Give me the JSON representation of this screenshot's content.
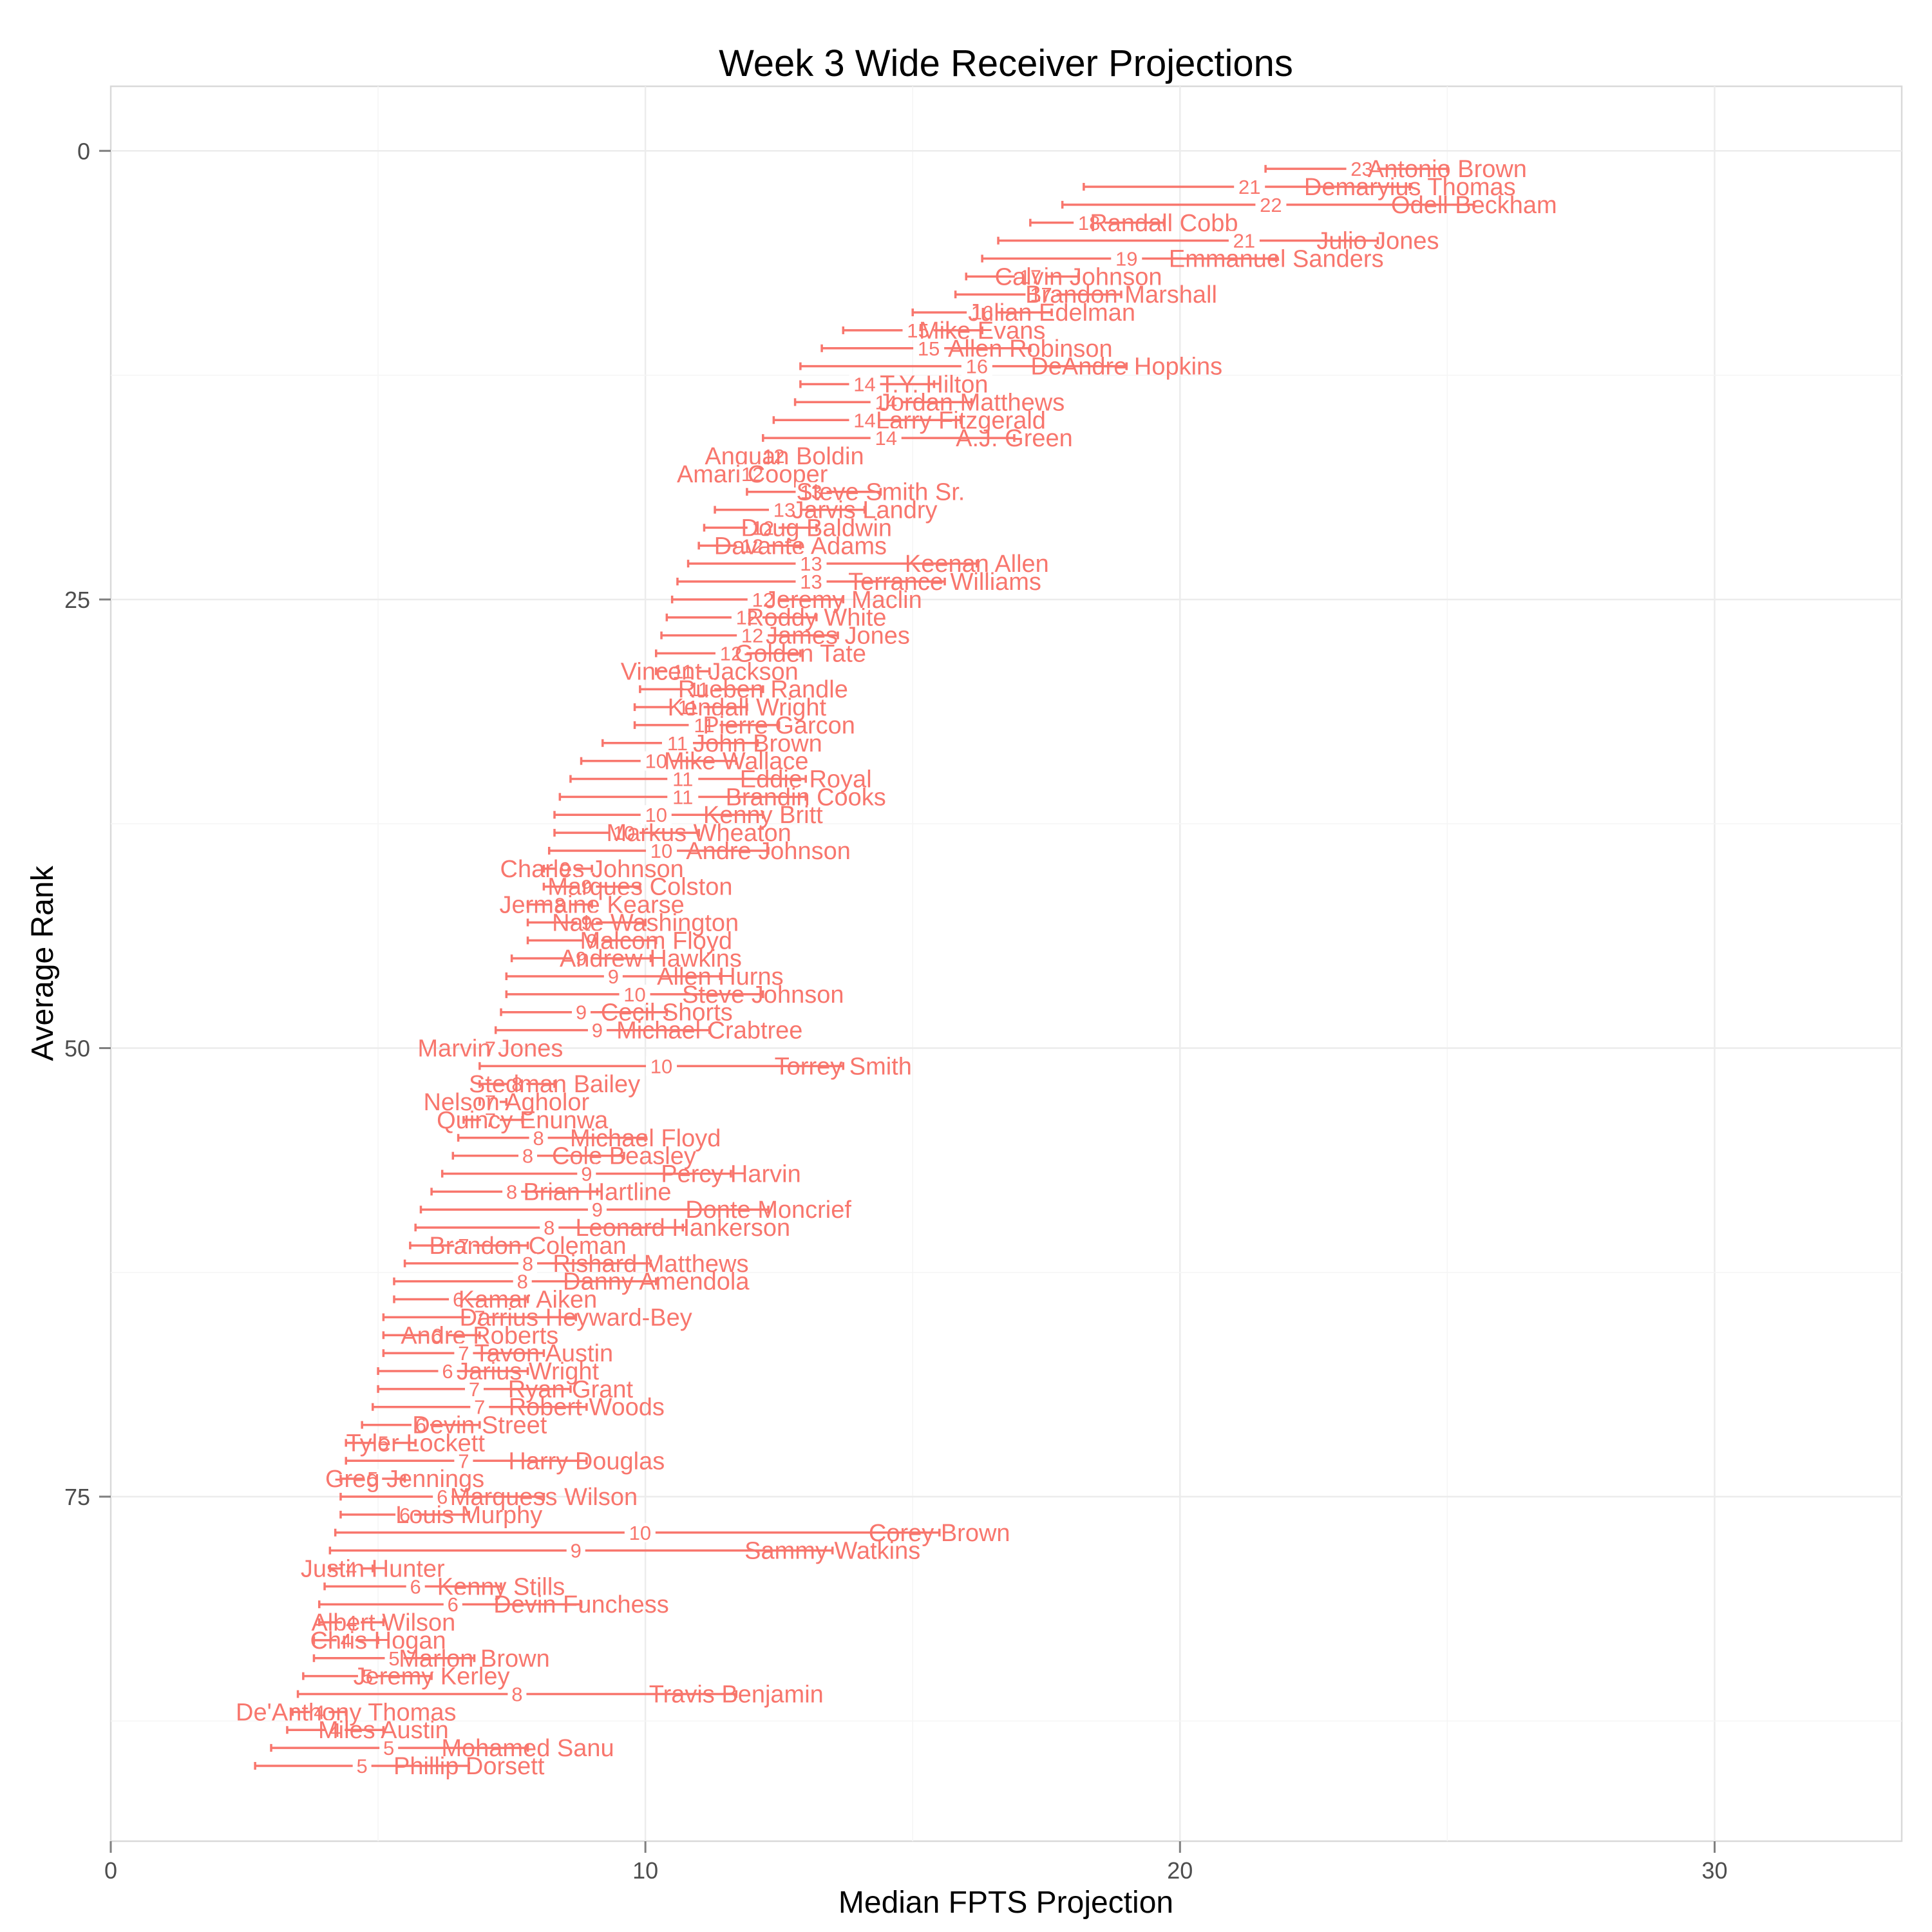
{
  "chart_data": {
    "type": "errorbar",
    "title": "Week 3 Wide Receiver Projections",
    "xlabel": "Median FPTS Projection",
    "ylabel": "Average Rank",
    "xlim": [
      0,
      33.5
    ],
    "ylim": [
      94.2,
      -3.6
    ],
    "x_ticks": [
      0,
      10,
      20,
      30
    ],
    "y_ticks": [
      0,
      25,
      50,
      75
    ],
    "y_reversed": true,
    "grid": true,
    "color": "#f8766d",
    "fields": [
      "player",
      "avg_rank",
      "low",
      "median",
      "high",
      "median_label"
    ],
    "series": [
      [
        "Antonio Brown",
        1,
        21.6,
        23.4,
        25.0,
        "23"
      ],
      [
        "Demaryius Thomas",
        2,
        18.2,
        21.3,
        24.3,
        "21"
      ],
      [
        "Odell Beckham",
        3,
        17.8,
        21.7,
        25.5,
        "22"
      ],
      [
        "Randall Cobb",
        4,
        17.2,
        18.3,
        19.7,
        "18"
      ],
      [
        "Julio Jones",
        5,
        16.6,
        21.2,
        23.7,
        "21"
      ],
      [
        "Emmanuel Sanders",
        6,
        16.3,
        19.0,
        21.8,
        "19"
      ],
      [
        "Calvin Johnson",
        7,
        16.0,
        17.2,
        18.1,
        "17"
      ],
      [
        "Brandon Marshall",
        8,
        15.8,
        17.4,
        18.9,
        "17"
      ],
      [
        "Julian Edelman",
        9,
        15.0,
        16.3,
        17.6,
        "16"
      ],
      [
        "Mike Evans",
        10,
        13.7,
        15.1,
        16.3,
        "15"
      ],
      [
        "Allen Robinson",
        11,
        13.3,
        15.3,
        17.2,
        "15"
      ],
      [
        "DeAndre Hopkins",
        12,
        12.9,
        16.2,
        19.0,
        "16"
      ],
      [
        "T.Y. Hilton",
        13,
        12.9,
        14.1,
        15.4,
        "14"
      ],
      [
        "Jordan Matthews",
        14,
        12.8,
        14.5,
        16.1,
        "14"
      ],
      [
        "Larry Fitzgerald",
        15,
        12.4,
        14.1,
        15.9,
        "14"
      ],
      [
        "A.J. Green",
        16,
        12.2,
        14.5,
        16.9,
        "14"
      ],
      [
        "Anquan Boldin",
        17,
        12.2,
        12.4,
        12.6,
        "12"
      ],
      [
        "Amari Cooper",
        18,
        12.0,
        12.0,
        12.0,
        "12"
      ],
      [
        "Steve Smith Sr.",
        19,
        11.9,
        13.1,
        14.4,
        "13"
      ],
      [
        "Jarvis Landry",
        20,
        11.3,
        12.6,
        14.1,
        "13"
      ],
      [
        "Doug Baldwin",
        21,
        11.1,
        12.2,
        13.2,
        "12"
      ],
      [
        "Davante Adams",
        22,
        11.0,
        12.0,
        12.9,
        "12"
      ],
      [
        "Keenan Allen",
        23,
        10.8,
        13.1,
        16.2,
        "13"
      ],
      [
        "Terrance Williams",
        24,
        10.6,
        13.1,
        15.6,
        "13"
      ],
      [
        "Jeremy Maclin",
        25,
        10.5,
        12.2,
        13.7,
        "12"
      ],
      [
        "Roddy White",
        26,
        10.4,
        11.9,
        13.2,
        "12"
      ],
      [
        "James Jones",
        27,
        10.3,
        12.0,
        13.6,
        "12"
      ],
      [
        "Golden Tate",
        28,
        10.2,
        11.6,
        12.9,
        "12"
      ],
      [
        "Vincent Jackson",
        29,
        10.2,
        10.7,
        11.2,
        "11"
      ],
      [
        "Rueben Randle",
        30,
        9.9,
        11.0,
        12.2,
        "11"
      ],
      [
        "Kendall Wright",
        31,
        9.8,
        10.8,
        11.9,
        "11"
      ],
      [
        "Pierre Garcon",
        32,
        9.8,
        11.1,
        12.5,
        "11"
      ],
      [
        "John Brown",
        33,
        9.2,
        10.6,
        12.1,
        "11"
      ],
      [
        "Mike Wallace",
        34,
        8.8,
        10.2,
        11.7,
        "10"
      ],
      [
        "Eddie Royal",
        35,
        8.6,
        10.7,
        13.0,
        "11"
      ],
      [
        "Brandin Cooks",
        36,
        8.4,
        10.7,
        13.0,
        "11"
      ],
      [
        "Kenny Britt",
        37,
        8.3,
        10.2,
        12.2,
        "10"
      ],
      [
        "Markus Wheaton",
        38,
        8.3,
        9.6,
        11.0,
        "10"
      ],
      [
        "Andre Johnson",
        39,
        8.2,
        10.3,
        12.3,
        "10"
      ],
      [
        "Charles Johnson",
        40,
        8.1,
        8.5,
        9.0,
        "9"
      ],
      [
        "Marques Colston",
        41,
        8.1,
        8.9,
        9.9,
        "9"
      ],
      [
        "Jermaine Kearse",
        42,
        7.8,
        8.4,
        9.0,
        "8"
      ],
      [
        "Nate Washington",
        43,
        7.8,
        8.9,
        10.0,
        "9"
      ],
      [
        "Malcom Floyd",
        44,
        7.8,
        9.0,
        10.2,
        "9"
      ],
      [
        "Andrew Hawkins",
        45,
        7.5,
        8.8,
        10.1,
        "9"
      ],
      [
        "Allen Hurns",
        46,
        7.4,
        9.4,
        11.4,
        "9"
      ],
      [
        "Steve Johnson",
        47,
        7.4,
        9.8,
        12.2,
        "10"
      ],
      [
        "Cecil Shorts",
        48,
        7.3,
        8.8,
        10.4,
        "9"
      ],
      [
        "Michael Crabtree",
        49,
        7.2,
        9.1,
        11.2,
        "9"
      ],
      [
        "Marvin Jones",
        50,
        7.1,
        7.1,
        7.1,
        "7"
      ],
      [
        "Torrey Smith",
        51,
        6.9,
        10.3,
        13.7,
        "10"
      ],
      [
        "Stedman Bailey",
        52,
        6.9,
        7.6,
        8.3,
        "8"
      ],
      [
        "Nelson Agholor",
        53,
        6.9,
        7.1,
        7.4,
        "7"
      ],
      [
        "Quincy Enunwa",
        54,
        6.6,
        7.1,
        7.7,
        "7"
      ],
      [
        "Michael Floyd",
        55,
        6.5,
        8.0,
        10.0,
        "8"
      ],
      [
        "Cole Beasley",
        56,
        6.4,
        7.8,
        9.6,
        "8"
      ],
      [
        "Percy Harvin",
        57,
        6.2,
        8.9,
        11.6,
        "9"
      ],
      [
        "Brian Hartline",
        58,
        6.0,
        7.5,
        9.1,
        "8"
      ],
      [
        "Donte Moncrief",
        59,
        5.8,
        9.1,
        12.3,
        "9"
      ],
      [
        "Leonard Hankerson",
        60,
        5.7,
        8.2,
        10.7,
        "8"
      ],
      [
        "Brandon Coleman",
        61,
        5.6,
        6.6,
        7.8,
        "7"
      ],
      [
        "Rishard Matthews",
        62,
        5.5,
        7.8,
        10.1,
        "8"
      ],
      [
        "Danny Amendola",
        63,
        5.3,
        7.7,
        10.2,
        "8"
      ],
      [
        "Kamar Aiken",
        64,
        5.3,
        6.5,
        7.8,
        "6"
      ],
      [
        "Darrius Heyward-Bey",
        65,
        5.1,
        6.9,
        8.7,
        "7"
      ],
      [
        "Andre Roberts",
        66,
        5.1,
        6.1,
        6.9,
        "6"
      ],
      [
        "Tavon Austin",
        67,
        5.1,
        6.6,
        8.1,
        "7"
      ],
      [
        "Jarius Wright",
        68,
        5.0,
        6.3,
        7.8,
        "6"
      ],
      [
        "Ryan Grant",
        69,
        5.0,
        6.8,
        8.6,
        "7"
      ],
      [
        "Robert Woods",
        70,
        4.9,
        6.9,
        8.9,
        "7"
      ],
      [
        "Devin Street",
        71,
        4.7,
        5.8,
        6.9,
        "6"
      ],
      [
        "Tyler Lockett",
        72,
        4.4,
        5.1,
        5.7,
        "5"
      ],
      [
        "Harry Douglas",
        73,
        4.4,
        6.6,
        8.9,
        "7"
      ],
      [
        "Greg Jennings",
        74,
        4.3,
        4.9,
        5.5,
        "5"
      ],
      [
        "Marquess Wilson",
        75,
        4.3,
        6.2,
        8.1,
        "6"
      ],
      [
        "Louis Murphy",
        76,
        4.3,
        5.5,
        6.7,
        "6"
      ],
      [
        "Corey Brown",
        77,
        4.2,
        9.9,
        15.5,
        "10"
      ],
      [
        "Sammy Watkins",
        78,
        4.1,
        8.7,
        13.5,
        "9"
      ],
      [
        "Justin Hunter",
        79,
        4.1,
        4.5,
        4.9,
        "4"
      ],
      [
        "Kenny Stills",
        80,
        4.0,
        5.7,
        7.3,
        "6"
      ],
      [
        "Devin Funchess",
        81,
        3.9,
        6.4,
        8.8,
        "6"
      ],
      [
        "Albert Wilson",
        82,
        3.9,
        4.5,
        5.1,
        "4"
      ],
      [
        "Chris Hogan",
        83,
        3.8,
        4.4,
        5.0,
        "4"
      ],
      [
        "Marlon Brown",
        84,
        3.8,
        5.3,
        6.8,
        "5"
      ],
      [
        "Jeremy Kerley",
        85,
        3.6,
        4.8,
        6.0,
        "5"
      ],
      [
        "Travis Benjamin",
        86,
        3.5,
        7.6,
        11.7,
        "8"
      ],
      [
        "De'Anthony Thomas",
        87,
        3.4,
        3.9,
        4.4,
        "4"
      ],
      [
        "Miles Austin",
        88,
        3.3,
        4.2,
        5.1,
        "4"
      ],
      [
        "Mohamed Sanu",
        89,
        3.0,
        5.2,
        7.8,
        "5"
      ],
      [
        "Phillip Dorsett",
        90,
        2.7,
        4.7,
        6.7,
        "5"
      ]
    ]
  }
}
